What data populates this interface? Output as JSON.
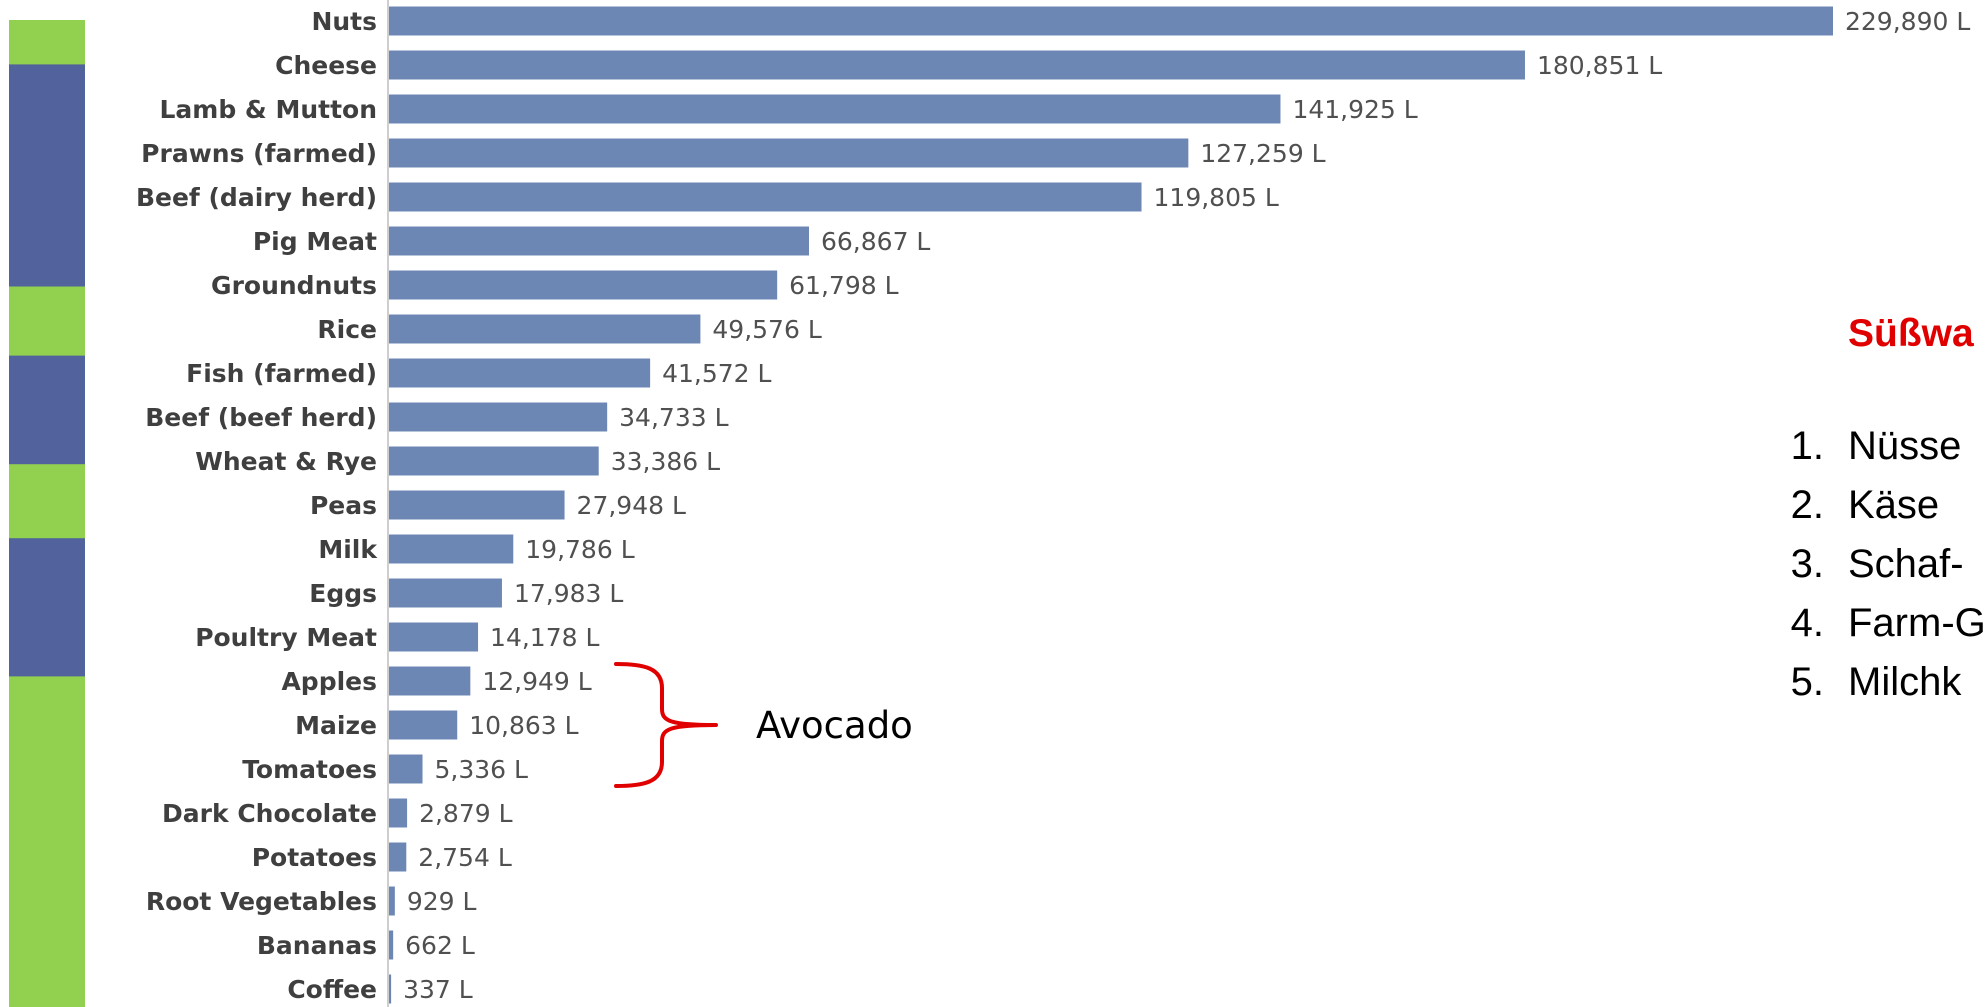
{
  "chart_data": {
    "type": "bar",
    "orientation": "horizontal",
    "categories": [
      "Nuts",
      "Cheese",
      "Lamb & Mutton",
      "Prawns (farmed)",
      "Beef (dairy herd)",
      "Pig Meat",
      "Groundnuts",
      "Rice",
      "Fish (farmed)",
      "Beef (beef herd)",
      "Wheat & Rye",
      "Peas",
      "Milk",
      "Eggs",
      "Poultry Meat",
      "Apples",
      "Maize",
      "Tomatoes",
      "Dark Chocolate",
      "Potatoes",
      "Root Vegetables",
      "Bananas",
      "Coffee"
    ],
    "values": [
      229890,
      180851,
      141925,
      127259,
      119805,
      66867,
      61798,
      49576,
      41572,
      34733,
      33386,
      27948,
      19786,
      17983,
      14178,
      12949,
      10863,
      5336,
      2879,
      2754,
      929,
      662,
      337
    ],
    "value_labels": [
      "229,890 L",
      "180,851 L",
      "141,925 L",
      "127,259 L",
      "119,805 L",
      "66,867 L",
      "61,798 L",
      "49,576 L",
      "41,572 L",
      "34,733 L",
      "33,386 L",
      "27,948 L",
      "19,786 L",
      "17,983 L",
      "14,178 L",
      "12,949 L",
      "10,863 L",
      "5,336 L",
      "2,879 L",
      "2,754 L",
      "929 L",
      "662 L",
      "337 L"
    ],
    "title": "",
    "xlabel": "",
    "ylabel": "",
    "xlim": [
      0,
      229890
    ],
    "grid": false,
    "bar_color": "#6d87b4",
    "annotation": {
      "text": "Avocado",
      "bracket_covers": [
        "Apples",
        "Maize",
        "Tomatoes"
      ],
      "bracket_color": "#e00000"
    }
  },
  "side_bar": {
    "segments": [
      {
        "color": "#92d050",
        "fill": 0.045
      },
      {
        "color": "#52629c",
        "fill": 0.225
      },
      {
        "color": "#92d050",
        "fill": 0.07
      },
      {
        "color": "#52629c",
        "fill": 0.11
      },
      {
        "color": "#92d050",
        "fill": 0.075
      },
      {
        "color": "#52629c",
        "fill": 0.14
      },
      {
        "color": "#92d050",
        "fill": 0.335
      }
    ]
  },
  "side_panel": {
    "title": "Süßwa",
    "items": [
      {
        "num": "1.",
        "text": "Nüsse"
      },
      {
        "num": "2.",
        "text": "Käse"
      },
      {
        "num": "3.",
        "text": "Schaf-"
      },
      {
        "num": "4.",
        "text": "Farm-G"
      },
      {
        "num": "5.",
        "text": "Milchk"
      }
    ]
  },
  "colors": {
    "bar": "#6d87b4",
    "green": "#92d050",
    "navy": "#52629c",
    "accent_red": "#e00000"
  }
}
